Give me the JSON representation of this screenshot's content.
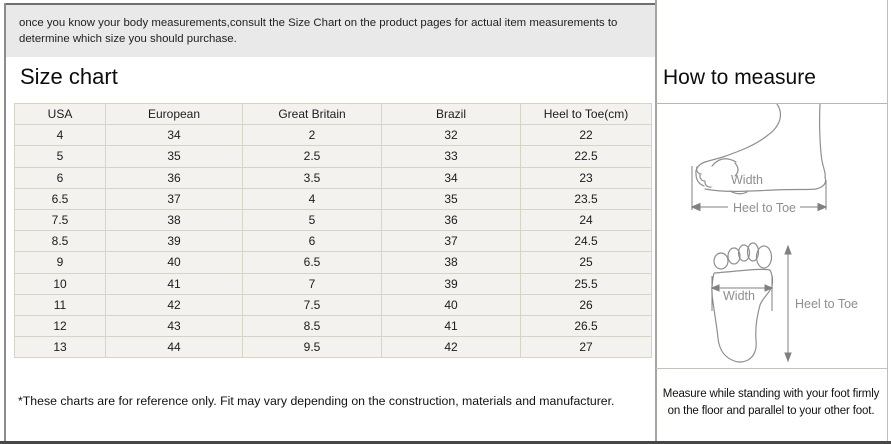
{
  "intro": {
    "lines": [
      "once you know your body measurements,consult the Size Chart on the product pages for actual item measurements to",
      "determine which size you should purchase."
    ]
  },
  "size_chart": {
    "title": "Size chart",
    "table": {
      "headers": [
        "USA",
        "European",
        "Great Britain",
        "Brazil",
        "Heel to Toe(cm)"
      ],
      "rows": [
        [
          "4",
          "34",
          "2",
          "32",
          "22"
        ],
        [
          "5",
          "35",
          "2.5",
          "33",
          "22.5"
        ],
        [
          "6",
          "36",
          "3.5",
          "34",
          "23"
        ],
        [
          "6.5",
          "37",
          "4",
          "35",
          "23.5"
        ],
        [
          "7.5",
          "38",
          "5",
          "36",
          "24"
        ],
        [
          "8.5",
          "39",
          "6",
          "37",
          "24.5"
        ],
        [
          "9",
          "40",
          "6.5",
          "38",
          "25"
        ],
        [
          "10",
          "41",
          "7",
          "39",
          "25.5"
        ],
        [
          "11",
          "42",
          "7.5",
          "40",
          "26"
        ],
        [
          "12",
          "43",
          "8.5",
          "41",
          "26.5"
        ],
        [
          "13",
          "44",
          "9.5",
          "42",
          "27"
        ]
      ]
    },
    "footnote": "*These charts are for reference only. Fit may vary depending on the construction, materials and manufacturer."
  },
  "how_to_measure": {
    "title": "How to measure",
    "side_diagram": {
      "width_label": "Width",
      "heel_to_toe_label": "Heel to Toe"
    },
    "top_diagram": {
      "width_label": "Width",
      "heel_to_toe_label": "Heel to Toe"
    },
    "caption_lines": [
      "Measure while standing with your foot firmly",
      "on the floor and parallel to your other foot."
    ]
  },
  "colors": {
    "banner_bg": "#e9e9e9",
    "table_cell_bg": "#f3f2ee",
    "table_border": "#d8d4c5",
    "divider": "#a8a59c",
    "diagram_stroke": "#8f8f8f",
    "page_bottom_border": "#474747"
  }
}
